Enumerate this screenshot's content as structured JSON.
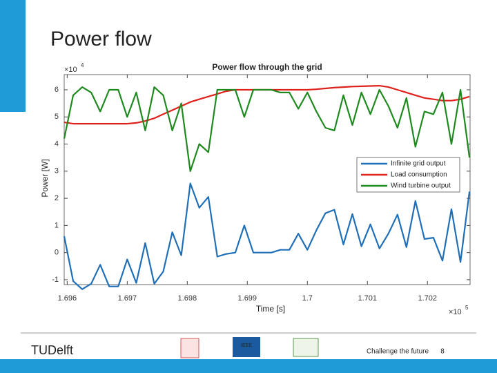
{
  "slide_title": "Power flow",
  "footer": {
    "tagline": "Challenge the future",
    "page": "8",
    "logo": "TUDelft",
    "ieee": "IEEE"
  },
  "chart_data": {
    "type": "line",
    "title": "Power flow through the grid",
    "x_label": "Time [s]",
    "y_label": "Power [W]",
    "x_exponent": {
      "base": "×10",
      "power": "5"
    },
    "y_exponent": {
      "base": "×10",
      "power": "4"
    },
    "xlim": [
      1.69595,
      1.70271
    ],
    "ylim": [
      -1.18,
      6.56
    ],
    "xticks": [
      1.696,
      1.697,
      1.698,
      1.699,
      1.7,
      1.701,
      1.702
    ],
    "yticks": [
      -1,
      0,
      1,
      2,
      3,
      4,
      5,
      6
    ],
    "grid": false,
    "legend": "right",
    "x": [
      1.69595,
      1.6961,
      1.69625,
      1.6964,
      1.69655,
      1.6967,
      1.69685,
      1.697,
      1.69715,
      1.6973,
      1.69745,
      1.6976,
      1.69775,
      1.6979,
      1.69805,
      1.6982,
      1.69835,
      1.6985,
      1.69865,
      1.6988,
      1.69895,
      1.6991,
      1.69925,
      1.6994,
      1.69955,
      1.6997,
      1.69985,
      1.7,
      1.70015,
      1.7003,
      1.70045,
      1.7006,
      1.70075,
      1.7009,
      1.70105,
      1.7012,
      1.70135,
      1.7015,
      1.70165,
      1.7018,
      1.70195,
      1.7021,
      1.70225,
      1.7024,
      1.70255,
      1.7027
    ],
    "series": [
      {
        "name": "Infinite grid output",
        "color": "#1f6fb8",
        "values": [
          0.6,
          -1.05,
          -1.35,
          -1.15,
          -0.45,
          -1.25,
          -1.25,
          -0.25,
          -1.12,
          0.35,
          -1.15,
          -0.7,
          0.75,
          -0.1,
          2.55,
          1.65,
          2.05,
          -0.15,
          -0.05,
          0,
          1.0,
          0,
          0,
          0,
          0.1,
          0.1,
          0.7,
          0.1,
          0.82,
          1.45,
          1.58,
          0.3,
          1.42,
          0.23,
          1.04,
          0.15,
          0.7,
          1.4,
          0.2,
          1.9,
          0.5,
          0.55,
          -0.3,
          1.6,
          -0.35,
          2.25
        ]
      },
      {
        "name": "Load consumption",
        "color": "#e0201b",
        "values": [
          4.8,
          4.75,
          4.75,
          4.75,
          4.75,
          4.75,
          4.75,
          4.75,
          4.78,
          4.85,
          4.95,
          5.1,
          5.25,
          5.4,
          5.55,
          5.65,
          5.75,
          5.85,
          5.95,
          6,
          6,
          6,
          6,
          6,
          6,
          6,
          6,
          6,
          6.02,
          6.05,
          6.08,
          6.1,
          6.12,
          6.13,
          6.14,
          6.15,
          6.1,
          6.0,
          5.9,
          5.8,
          5.7,
          5.65,
          5.6,
          5.6,
          5.65,
          5.75
        ]
      },
      {
        "name": "Wind turbine output",
        "color": "#1e8a1e",
        "values": [
          4.2,
          5.8,
          6.1,
          5.9,
          5.2,
          6.0,
          6.0,
          5.0,
          5.9,
          4.5,
          6.1,
          5.8,
          4.5,
          5.5,
          3.0,
          4.0,
          3.7,
          6.0,
          6.0,
          6.0,
          5.0,
          6.0,
          6.0,
          6.0,
          5.9,
          5.9,
          5.3,
          5.9,
          5.2,
          4.6,
          4.5,
          5.8,
          4.7,
          5.9,
          5.1,
          6.0,
          5.4,
          4.6,
          5.7,
          3.9,
          5.2,
          5.1,
          5.9,
          4.0,
          6.0,
          3.5
        ]
      }
    ]
  }
}
